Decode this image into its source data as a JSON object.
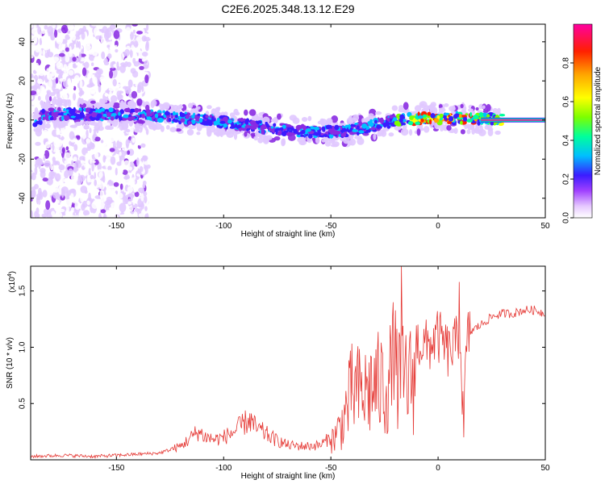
{
  "title": "C2E6.2025.348.13.12.E29",
  "chart_data": [
    {
      "type": "heatmap",
      "title": "C2E6.2025.348.13.12.E29",
      "xlabel": "Height of straight line (km)",
      "ylabel": "Frequency (Hz)",
      "xlim": [
        -190,
        50
      ],
      "ylim": [
        -50,
        49
      ],
      "xticks": [
        -150,
        -100,
        -50,
        0,
        50
      ],
      "yticks": [
        -40,
        -20,
        0,
        20,
        40
      ],
      "colorbar": {
        "label": "Normalized spectral amplitude",
        "range": [
          0,
          1
        ],
        "ticks": [
          "0.0",
          "0.2",
          "0.4",
          "0.6",
          "0.8"
        ],
        "colors": [
          "#ffffff",
          "#e0c8ff",
          "#8a2be2",
          "#3a1cff",
          "#00bfff",
          "#00ff9c",
          "#7dff00",
          "#ffff00",
          "#ffa500",
          "#ff2000",
          "#ff00a0"
        ]
      },
      "ridge": [
        {
          "x": -185,
          "y": 3
        },
        {
          "x": -140,
          "y": 3
        },
        {
          "x": -120,
          "y": 1
        },
        {
          "x": -100,
          "y": -1
        },
        {
          "x": -80,
          "y": -4
        },
        {
          "x": -60,
          "y": -6
        },
        {
          "x": -45,
          "y": -6
        },
        {
          "x": -35,
          "y": -4
        },
        {
          "x": -20,
          "y": 0
        },
        {
          "x": -5,
          "y": 1
        },
        {
          "x": 10,
          "y": 1
        },
        {
          "x": 20,
          "y": 0.5
        },
        {
          "x": 50,
          "y": 0
        }
      ]
    },
    {
      "type": "line",
      "xlabel": "Height of straight line (km)",
      "ylabel": "SNR (10 * v/v)",
      "y_multiplier": "(x10^4)",
      "y_multiplier_base": "(x10",
      "y_multiplier_exp": "4",
      "xlim": [
        -190,
        50
      ],
      "ylim": [
        0,
        1.72
      ],
      "xticks": [
        -150,
        -100,
        -50,
        0,
        50
      ],
      "yticks": [
        "0.5",
        "1.0",
        "1.5"
      ],
      "series": [
        {
          "name": "SNR",
          "color": "#e53935",
          "x": [
            -190,
            -175,
            -160,
            -140,
            -130,
            -120,
            -112,
            -108,
            -104,
            -100,
            -95,
            -88,
            -85,
            -82,
            -76,
            -70,
            -62,
            -55,
            -50,
            -45,
            -40,
            -35,
            -30,
            -25,
            -20,
            -17,
            -15,
            -13,
            -10,
            -5,
            0,
            5,
            9,
            10,
            11,
            12,
            13,
            14,
            16,
            20,
            25,
            30,
            35,
            40,
            45,
            50
          ],
          "y": [
            0.03,
            0.04,
            0.03,
            0.05,
            0.06,
            0.12,
            0.25,
            0.2,
            0.18,
            0.2,
            0.25,
            0.36,
            0.28,
            0.25,
            0.18,
            0.13,
            0.12,
            0.13,
            0.2,
            0.4,
            0.8,
            0.75,
            0.85,
            0.85,
            1.0,
            0.9,
            0.95,
            0.9,
            1.05,
            1.0,
            1.1,
            0.95,
            1.05,
            1.2,
            0.7,
            0.4,
            0.9,
            1.1,
            1.15,
            1.2,
            1.27,
            1.3,
            1.3,
            1.33,
            1.33,
            1.3
          ]
        }
      ],
      "spikes": [
        {
          "x": -17,
          "y": 1.72
        },
        {
          "x": -21,
          "y": 1.4
        },
        {
          "x": 10,
          "y": 1.58
        },
        {
          "x": 12,
          "y": 0.2
        }
      ]
    }
  ]
}
